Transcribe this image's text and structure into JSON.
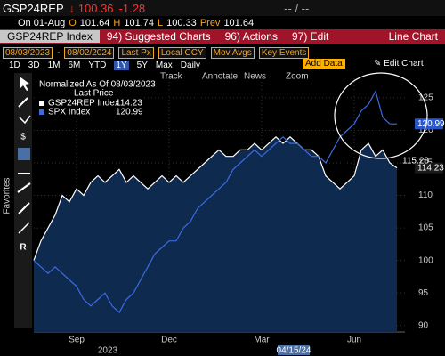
{
  "ui": {
    "ticker": "GSP24REP",
    "price": "↓ 100.36",
    "change": "-1.28",
    "bidask": "-- / --",
    "ohlc": [
      "On 01-Aug",
      "O",
      "101.64",
      "H",
      "101.74",
      "L",
      "100.33",
      "Prev",
      "101.64"
    ],
    "menu": [
      "GSP24REP Index",
      "94) Suggested Charts",
      "96) Actions",
      "97) Edit",
      "Line Chart"
    ],
    "settings": [
      "08/03/2023",
      "-",
      "08/02/2024",
      "Last Px",
      "Local CCY",
      "Mov Avgs",
      "Key Events"
    ],
    "periods": [
      "1D",
      "3D",
      "1M",
      "6M",
      "YTD",
      "1Y",
      "5Y",
      "Max",
      "Daily"
    ],
    "right_buttons": [
      "Add Data",
      "Edit Chart"
    ],
    "tools": [
      "Track",
      "Annotate",
      "News",
      "Zoom"
    ],
    "favorites": "Favorites",
    "cursor_date": "04/15/24"
  },
  "chart_data": {
    "type": "line",
    "legend_title": "Normalized As Of 08/03/2023",
    "legend_subtitle": "Last Price",
    "categories": [
      null,
      null,
      null,
      null,
      null,
      null,
      "Sep",
      null,
      null,
      null,
      null,
      null,
      null,
      null,
      null,
      null,
      null,
      null,
      null,
      "Dec",
      null,
      null,
      null,
      null,
      null,
      null,
      null,
      null,
      null,
      null,
      null,
      null,
      "Mar",
      null,
      null,
      null,
      null,
      null,
      null,
      null,
      null,
      null,
      null,
      null,
      null,
      "Jun",
      null,
      null,
      null,
      null,
      null,
      null
    ],
    "year_label": "2023",
    "series": [
      {
        "name": "GSP24REP Index",
        "color": "#ffffff",
        "fill": "#0f2a4f",
        "values": [
          100,
          103,
          105,
          107,
          110,
          109,
          111,
          110,
          112,
          113,
          112,
          113,
          114,
          112,
          113,
          112,
          111,
          112,
          113,
          112,
          113,
          112,
          113,
          114,
          115,
          116,
          117,
          116,
          116,
          117,
          117,
          118,
          117,
          118,
          119,
          118,
          119,
          118,
          117,
          117,
          116,
          113,
          112,
          111,
          112,
          113,
          117,
          118,
          116,
          117,
          115,
          114.23
        ]
      },
      {
        "name": "SPX Index",
        "color": "#3d6ae0",
        "values": [
          100,
          99,
          98,
          99,
          98,
          97,
          96,
          94,
          93,
          94,
          95,
          93,
          92,
          94,
          95,
          97,
          99,
          101,
          102,
          103,
          103,
          105,
          106,
          108,
          109,
          110,
          111,
          112,
          114,
          115,
          116,
          117,
          116,
          117,
          118,
          119,
          118,
          118,
          117,
          116,
          116,
          115,
          117,
          119,
          120,
          121,
          123,
          124,
          126,
          122,
          121,
          120.99
        ]
      }
    ],
    "extra_badge": "115.28",
    "ylim": [
      89,
      128
    ],
    "yticks": [
      90,
      95,
      100,
      105,
      110,
      115,
      120,
      125
    ],
    "grid": true
  }
}
